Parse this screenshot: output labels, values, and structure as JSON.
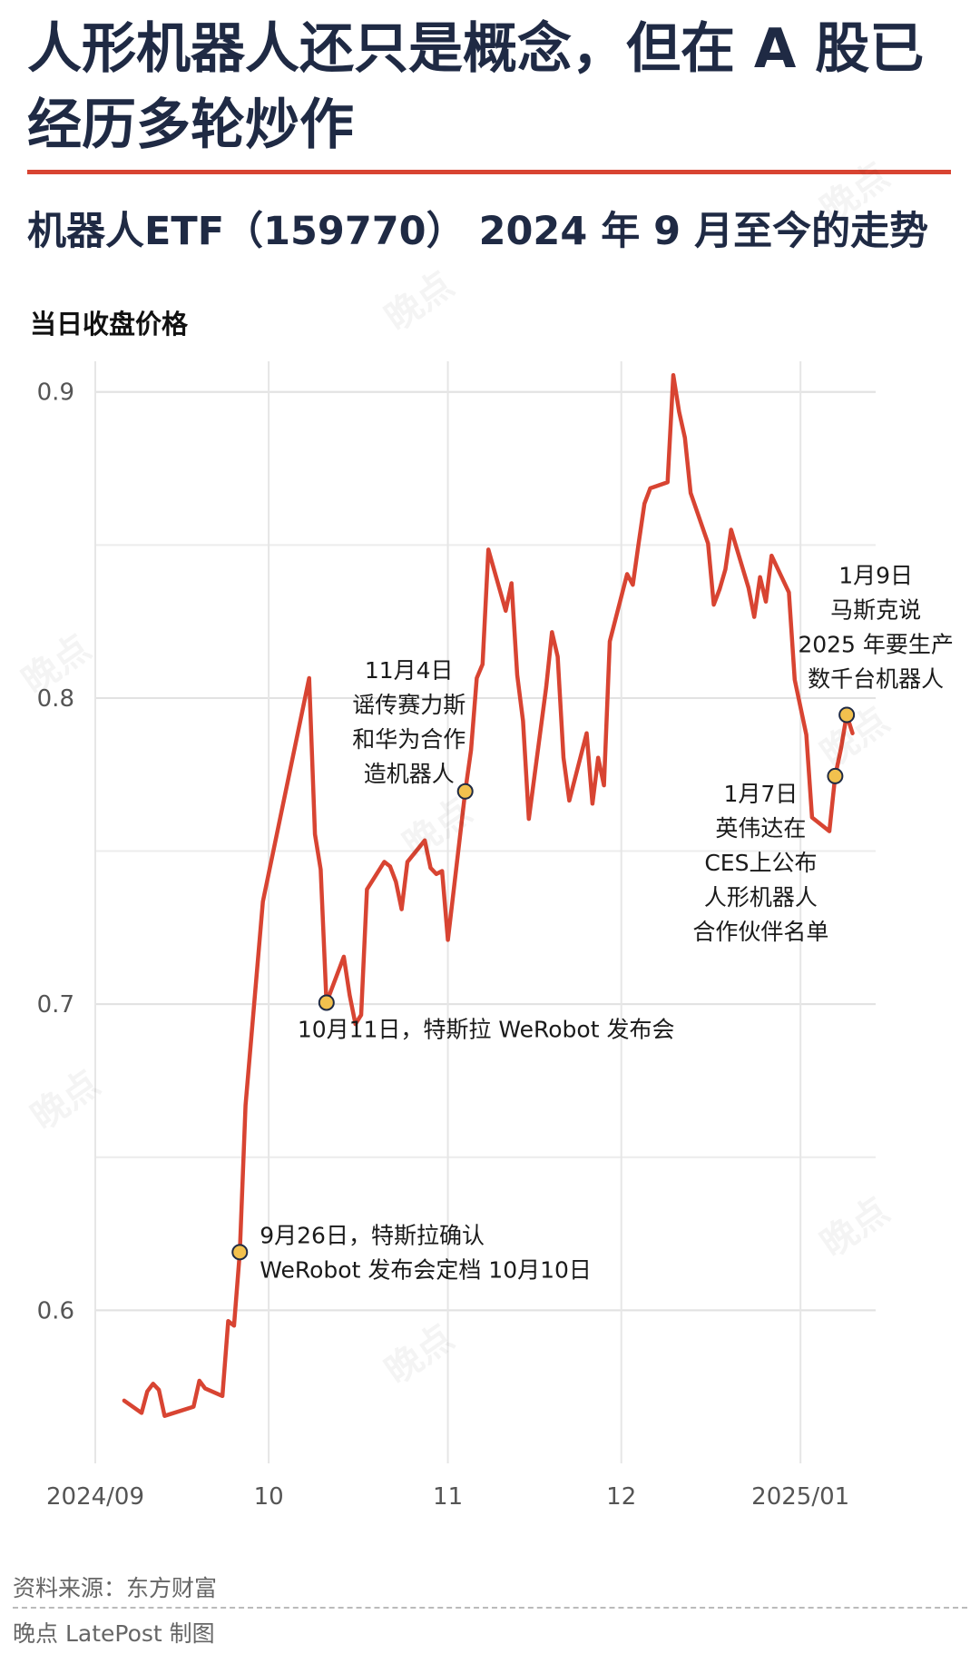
{
  "title": "人形机器人还只是概念，但在 A 股已经历多轮炒作",
  "subtitle": "机器人ETF（159770） 2024 年 9 月至今的走势",
  "unit_label": "当日收盘价格",
  "footer": {
    "source": "资料来源：东方财富",
    "credit": "晚点 LatePost 制图",
    "watermark": "晚点"
  },
  "colors": {
    "line": "#d84432",
    "title": "#1f2a44",
    "rule": "#d84432",
    "marker": "#f2c14e"
  },
  "chart_data": {
    "type": "line",
    "title": "机器人ETF（159770） 2024 年 9 月至今的走势",
    "ylabel": "当日收盘价格",
    "xlabel": "",
    "ylim": [
      0.55,
      0.91
    ],
    "xlim": [
      "2024-09-01",
      "2025-01-14"
    ],
    "grid": true,
    "x_ticks": [
      {
        "date": "2024-09-01",
        "label": "2024/09"
      },
      {
        "date": "2024-10-01",
        "label": "10"
      },
      {
        "date": "2024-11-01",
        "label": "11"
      },
      {
        "date": "2024-12-01",
        "label": "12"
      },
      {
        "date": "2025-01-01",
        "label": "2025/01"
      }
    ],
    "y_ticks": [
      0.6,
      0.7,
      0.8,
      0.9
    ],
    "series": [
      {
        "points": [
          [
            "2024-09-06",
            0.5705
          ],
          [
            "2024-09-09",
            0.5665
          ],
          [
            "2024-09-10",
            0.5735
          ],
          [
            "2024-09-11",
            0.576
          ],
          [
            "2024-09-12",
            0.574
          ],
          [
            "2024-09-13",
            0.5655
          ],
          [
            "2024-09-18",
            0.5685
          ],
          [
            "2024-09-19",
            0.577
          ],
          [
            "2024-09-20",
            0.5745
          ],
          [
            "2024-09-23",
            0.572
          ],
          [
            "2024-09-24",
            0.5965
          ],
          [
            "2024-09-25",
            0.595
          ],
          [
            "2024-09-26",
            0.619
          ],
          [
            "2024-09-27",
            0.667
          ],
          [
            "2024-09-30",
            0.7335
          ],
          [
            "2024-10-08",
            0.8065
          ],
          [
            "2024-10-09",
            0.7555
          ],
          [
            "2024-10-10",
            0.744
          ],
          [
            "2024-10-11",
            0.7005
          ],
          [
            "2024-10-14",
            0.7155
          ],
          [
            "2024-10-15",
            0.703
          ],
          [
            "2024-10-16",
            0.6935
          ],
          [
            "2024-10-17",
            0.6965
          ],
          [
            "2024-10-18",
            0.7375
          ],
          [
            "2024-10-21",
            0.7465
          ],
          [
            "2024-10-22",
            0.745
          ],
          [
            "2024-10-23",
            0.74
          ],
          [
            "2024-10-24",
            0.731
          ],
          [
            "2024-10-25",
            0.7465
          ],
          [
            "2024-10-28",
            0.7535
          ],
          [
            "2024-10-29",
            0.7445
          ],
          [
            "2024-10-30",
            0.7425
          ],
          [
            "2024-10-31",
            0.7435
          ],
          [
            "2024-11-01",
            0.721
          ],
          [
            "2024-11-04",
            0.7695
          ],
          [
            "2024-11-05",
            0.783
          ],
          [
            "2024-11-06",
            0.8065
          ],
          [
            "2024-11-07",
            0.811
          ],
          [
            "2024-11-08",
            0.8485
          ],
          [
            "2024-11-11",
            0.8285
          ],
          [
            "2024-11-12",
            0.8375
          ],
          [
            "2024-11-13",
            0.8075
          ],
          [
            "2024-11-14",
            0.7925
          ],
          [
            "2024-11-15",
            0.7605
          ],
          [
            "2024-11-18",
            0.8035
          ],
          [
            "2024-11-19",
            0.8215
          ],
          [
            "2024-11-20",
            0.8135
          ],
          [
            "2024-11-21",
            0.7805
          ],
          [
            "2024-11-22",
            0.7665
          ],
          [
            "2024-11-25",
            0.7885
          ],
          [
            "2024-11-26",
            0.7655
          ],
          [
            "2024-11-27",
            0.7805
          ],
          [
            "2024-11-28",
            0.7715
          ],
          [
            "2024-11-29",
            0.8185
          ],
          [
            "2024-12-02",
            0.8405
          ],
          [
            "2024-12-03",
            0.837
          ],
          [
            "2024-12-04",
            0.8505
          ],
          [
            "2024-12-05",
            0.8635
          ],
          [
            "2024-12-06",
            0.8685
          ],
          [
            "2024-12-09",
            0.8705
          ],
          [
            "2024-12-10",
            0.9055
          ],
          [
            "2024-12-11",
            0.8935
          ],
          [
            "2024-12-12",
            0.885
          ],
          [
            "2024-12-13",
            0.867
          ],
          [
            "2024-12-16",
            0.8505
          ],
          [
            "2024-12-17",
            0.8305
          ],
          [
            "2024-12-18",
            0.8355
          ],
          [
            "2024-12-19",
            0.842
          ],
          [
            "2024-12-20",
            0.855
          ],
          [
            "2024-12-23",
            0.836
          ],
          [
            "2024-12-24",
            0.8265
          ],
          [
            "2024-12-25",
            0.8395
          ],
          [
            "2024-12-26",
            0.8315
          ],
          [
            "2024-12-27",
            0.8465
          ],
          [
            "2024-12-30",
            0.8345
          ],
          [
            "2024-12-31",
            0.806
          ],
          [
            "2025-01-02",
            0.788
          ],
          [
            "2025-01-03",
            0.761
          ],
          [
            "2025-01-06",
            0.7565
          ],
          [
            "2025-01-07",
            0.7745
          ],
          [
            "2025-01-08",
            0.7835
          ],
          [
            "2025-01-09",
            0.7945
          ],
          [
            "2025-01-10",
            0.7885
          ]
        ]
      }
    ],
    "annotations": [
      {
        "date": "2024-09-26",
        "value": 0.619,
        "lines": [
          "9月26日，特斯拉确认",
          "WeRobot 发布会定档 10月10日"
        ],
        "anchor": "start",
        "dx": 22,
        "dy": -10
      },
      {
        "date": "2024-10-11",
        "value": 0.7005,
        "lines": [
          "10月11日，特斯拉 WeRobot 发布会"
        ],
        "anchor": "start",
        "dx": -32,
        "dy": 38
      },
      {
        "date": "2024-11-04",
        "value": 0.7695,
        "lines": [
          "11月4日",
          "谣传赛力斯",
          "和华为合作",
          "造机器人"
        ],
        "anchor": "middle",
        "dx": -62,
        "dy": -125
      },
      {
        "date": "2025-01-07",
        "value": 0.7745,
        "lines": [
          "1月7日",
          "英伟达在",
          "CES上公布",
          "人形机器人",
          "合作伙伴名单"
        ],
        "anchor": "middle",
        "dx": -82,
        "dy": 28
      },
      {
        "date": "2025-01-09",
        "value": 0.7945,
        "lines": [
          "1月9日",
          "马斯克说",
          "2025 年要生产",
          "数千台机器人"
        ],
        "anchor": "middle",
        "dx": 32,
        "dy": -145
      }
    ]
  }
}
